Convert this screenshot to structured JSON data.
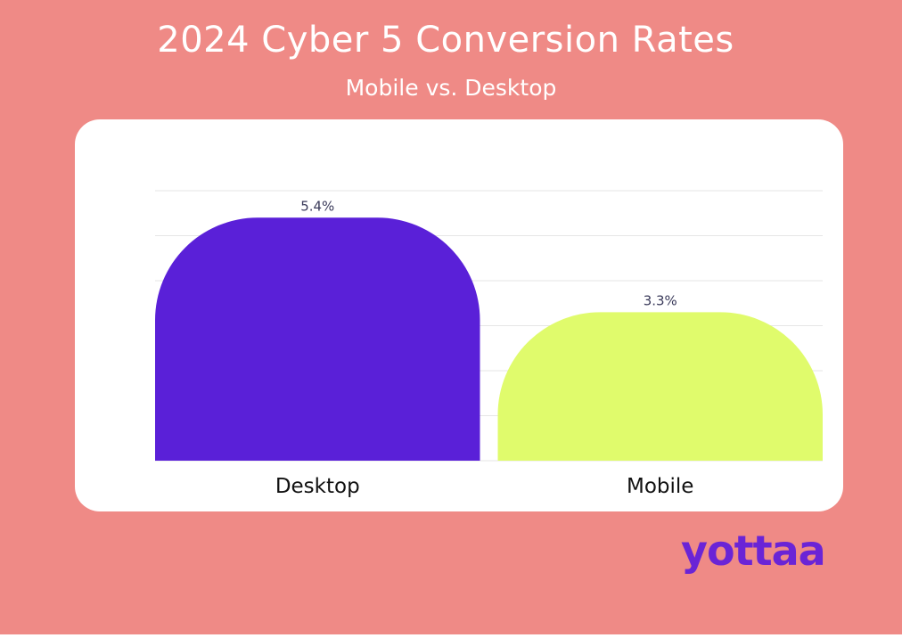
{
  "chart_data": {
    "type": "bar",
    "title": "2024 Cyber 5 Conversion Rates",
    "subtitle": "Mobile vs. Desktop",
    "categories": [
      "Desktop",
      "Mobile"
    ],
    "values": [
      5.4,
      3.3
    ],
    "value_labels": [
      "5.4%",
      "3.3%"
    ],
    "colors": [
      "#5A20D8",
      "#E0FB6C"
    ],
    "xlabel": "",
    "ylabel": "",
    "ylim": [
      0,
      6
    ],
    "grid": true,
    "legend": "none"
  },
  "brand": {
    "logo_text": "yottaa",
    "logo_color": "#6A24D6"
  },
  "colors": {
    "background": "#EF8A86",
    "card": "#FFFFFF",
    "gridline": "#E6E6E6",
    "value_label": "#3A3A5A",
    "category_label": "#111111"
  }
}
